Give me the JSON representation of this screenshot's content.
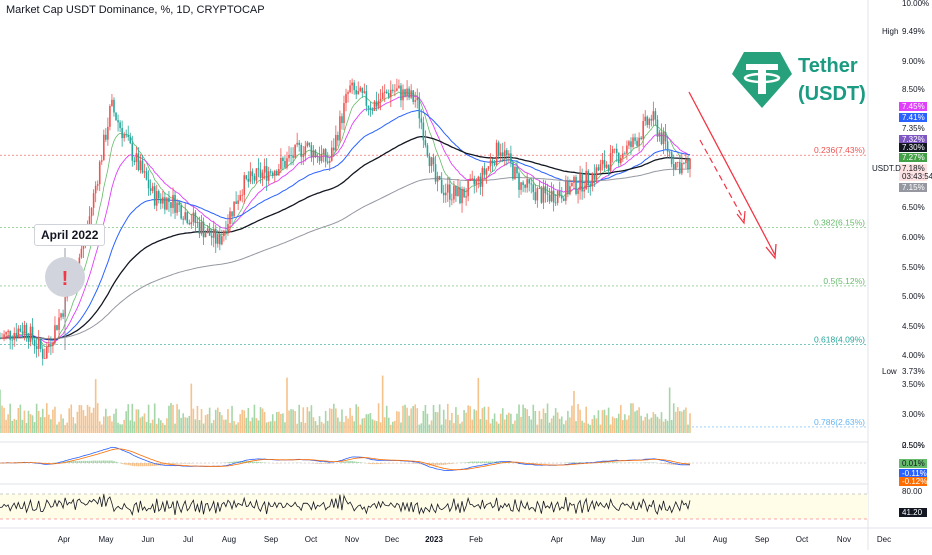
{
  "header": {
    "title": "Market Cap USDT Dominance, %, 1D, CRYPTOCAP"
  },
  "callout": {
    "label": "April 2022"
  },
  "logo": {
    "name": "Tether",
    "ticker": "(USDT)",
    "color": "#26a17b"
  },
  "colors": {
    "up": "#26a69a",
    "down": "#ef5350",
    "ema_black": "#131722",
    "ema_blue": "#2962ff",
    "ema_magenta": "#e040fb",
    "ema_green": "#66bb6a",
    "ema_gray": "#9598a1",
    "arrow": "#f23645"
  },
  "price_axis": {
    "ticks": [
      "10.00%",
      "9.49%",
      "9.00%",
      "8.50%",
      "7.45%",
      "7.41%",
      "7.35%",
      "7.32%",
      "7.30%",
      "7.27%",
      "7.18%",
      "03:43:54",
      "7.15%",
      "6.50%",
      "6.00%",
      "5.50%",
      "5.00%",
      "4.50%",
      "4.00%",
      "3.73%",
      "3.50%",
      "3.00%",
      "2.50%"
    ],
    "high_label": "High",
    "low_label": "Low",
    "symbol_label": "USDT.D"
  },
  "fib_levels": [
    {
      "label": "0.236(7.43%)",
      "color": "#ef5350"
    },
    {
      "label": "0.382(6.15%)",
      "color": "#66bb6a"
    },
    {
      "label": "0.5(5.12%)",
      "color": "#66bb6a"
    },
    {
      "label": "0.618(4.09%)",
      "color": "#26a69a"
    },
    {
      "label": "0.786(2.63%)",
      "color": "#64b5f6"
    }
  ],
  "macd_axis": {
    "ticks": [
      "0.50%",
      "0.01%",
      "-0.11%",
      "-0.12%"
    ]
  },
  "rsi_axis": {
    "ticks": [
      "80.00",
      "41.20"
    ]
  },
  "x_axis": {
    "labels": [
      "Apr",
      "May",
      "Jun",
      "Jul",
      "Aug",
      "Sep",
      "Oct",
      "Nov",
      "Dec",
      "2023",
      "Feb",
      "Apr",
      "May",
      "Jun",
      "Jul",
      "Aug",
      "Sep",
      "Oct",
      "Nov",
      "Dec"
    ]
  },
  "chart_data": {
    "type": "line",
    "title": "Market Cap USDT Dominance, %, 1D, CRYPTOCAP",
    "x": [
      "2022-03-15",
      "2022-04-01",
      "2022-04-15",
      "2022-05-01",
      "2022-05-15",
      "2022-06-01",
      "2022-06-15",
      "2022-07-01",
      "2022-07-15",
      "2022-08-01",
      "2022-08-15",
      "2022-09-01",
      "2022-09-15",
      "2022-10-01",
      "2022-10-15",
      "2022-11-01",
      "2022-11-15",
      "2022-12-01",
      "2022-12-15",
      "2023-01-01",
      "2023-01-15",
      "2023-02-01",
      "2023-02-15",
      "2023-03-01",
      "2023-03-15",
      "2023-04-01",
      "2023-04-15",
      "2023-05-01",
      "2023-05-15",
      "2023-06-01",
      "2023-06-15",
      "2023-07-01",
      "2023-07-12"
    ],
    "series": [
      {
        "values": [
          4.2,
          4.4,
          3.9,
          4.9,
          6.1,
          8.3,
          7.5,
          6.7,
          6.6,
          6.2,
          5.9,
          6.9,
          7.1,
          7.3,
          7.6,
          7.3,
          8.6,
          8.3,
          8.6,
          8.4,
          6.9,
          6.7,
          7.0,
          7.6,
          6.9,
          6.7,
          6.8,
          7.0,
          7.3,
          7.6,
          8.1,
          7.3,
          7.2
        ]
      }
    ],
    "ylim": [
      2.4,
      10.1
    ],
    "indicator_levels": {
      "fib_0_236": 7.43,
      "fib_0_382": 6.15,
      "fib_0_5": 5.12,
      "fib_0_618": 4.09,
      "fib_0_786": 2.63,
      "high": 9.49,
      "low": 3.73
    },
    "rsi_last": 41.2
  }
}
